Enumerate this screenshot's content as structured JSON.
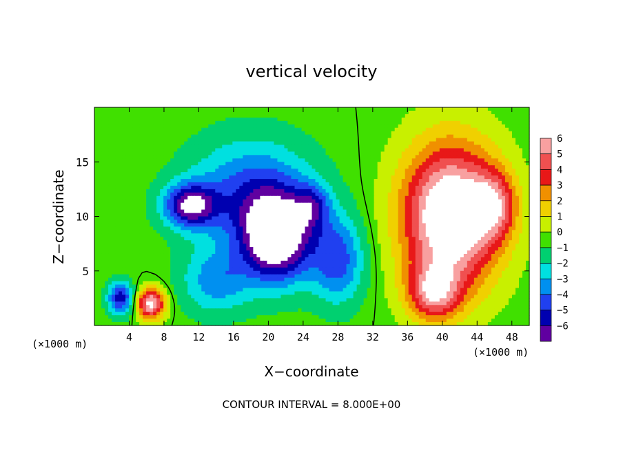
{
  "chart_data": {
    "type": "heatmap",
    "title": "vertical velocity",
    "xlabel": "X−coordinate",
    "ylabel": "Z−coordinate",
    "x_unit_left": "(×1000 m)",
    "x_unit_right": "(×1000 m)",
    "footer": "CONTOUR INTERVAL = 8.000E+00",
    "xlim": [
      0,
      50
    ],
    "ylim": [
      0,
      20
    ],
    "x_ticks": [
      4,
      8,
      12,
      16,
      20,
      24,
      28,
      32,
      36,
      40,
      44,
      48
    ],
    "x_tick_labels": [
      "4",
      "8",
      "12",
      "16",
      "20",
      "24",
      "28",
      "32",
      "36",
      "40",
      "44",
      "48"
    ],
    "y_ticks": [
      5,
      10,
      15
    ],
    "y_tick_labels": [
      "5",
      "10",
      "15"
    ],
    "colorbar": {
      "levels": [
        6,
        5,
        4,
        3,
        2,
        1,
        0,
        -1,
        -2,
        -3,
        -4,
        -5,
        -6
      ],
      "labels": [
        "6",
        "5",
        "4",
        "3",
        "2",
        "1",
        "0",
        "−1",
        "−2",
        "−3",
        "−4",
        "−5",
        "−6"
      ],
      "colors": [
        "#f8a0a0",
        "#f05050",
        "#e81818",
        "#f09000",
        "#f0d000",
        "#c8f000",
        "#40e000",
        "#00d070",
        "#00e0e0",
        "#0090f0",
        "#2040f0",
        "#0000b0",
        "#6000a0"
      ],
      "out_of_range_color": "#ffffff"
    },
    "field_blobs": [
      {
        "x": 41,
        "z": 10,
        "sx": 5.5,
        "sz": 6.5,
        "amp": 9
      },
      {
        "x": 46,
        "z": 11,
        "sx": 2.5,
        "sz": 3,
        "amp": 4
      },
      {
        "x": 39,
        "z": 3,
        "sx": 3,
        "sz": 2.5,
        "amp": 5
      },
      {
        "x": 6.5,
        "z": 2,
        "sx": 1.6,
        "sz": 1.4,
        "amp": 7
      },
      {
        "x": 21,
        "z": 8,
        "sx": 4,
        "sz": 4,
        "amp": -8
      },
      {
        "x": 11,
        "z": 11,
        "sx": 3,
        "sz": 2,
        "amp": -6
      },
      {
        "x": 18,
        "z": 12,
        "sx": 7,
        "sz": 5,
        "amp": -4
      },
      {
        "x": 28,
        "z": 6,
        "sx": 3,
        "sz": 4,
        "amp": -4
      },
      {
        "x": 3,
        "z": 2.5,
        "sx": 1.5,
        "sz": 1.5,
        "amp": -5
      },
      {
        "x": 25,
        "z": 11,
        "sx": 2,
        "sz": 2,
        "amp": -3
      },
      {
        "x": 14,
        "z": 4,
        "sx": 4,
        "sz": 3,
        "amp": -3
      }
    ]
  }
}
